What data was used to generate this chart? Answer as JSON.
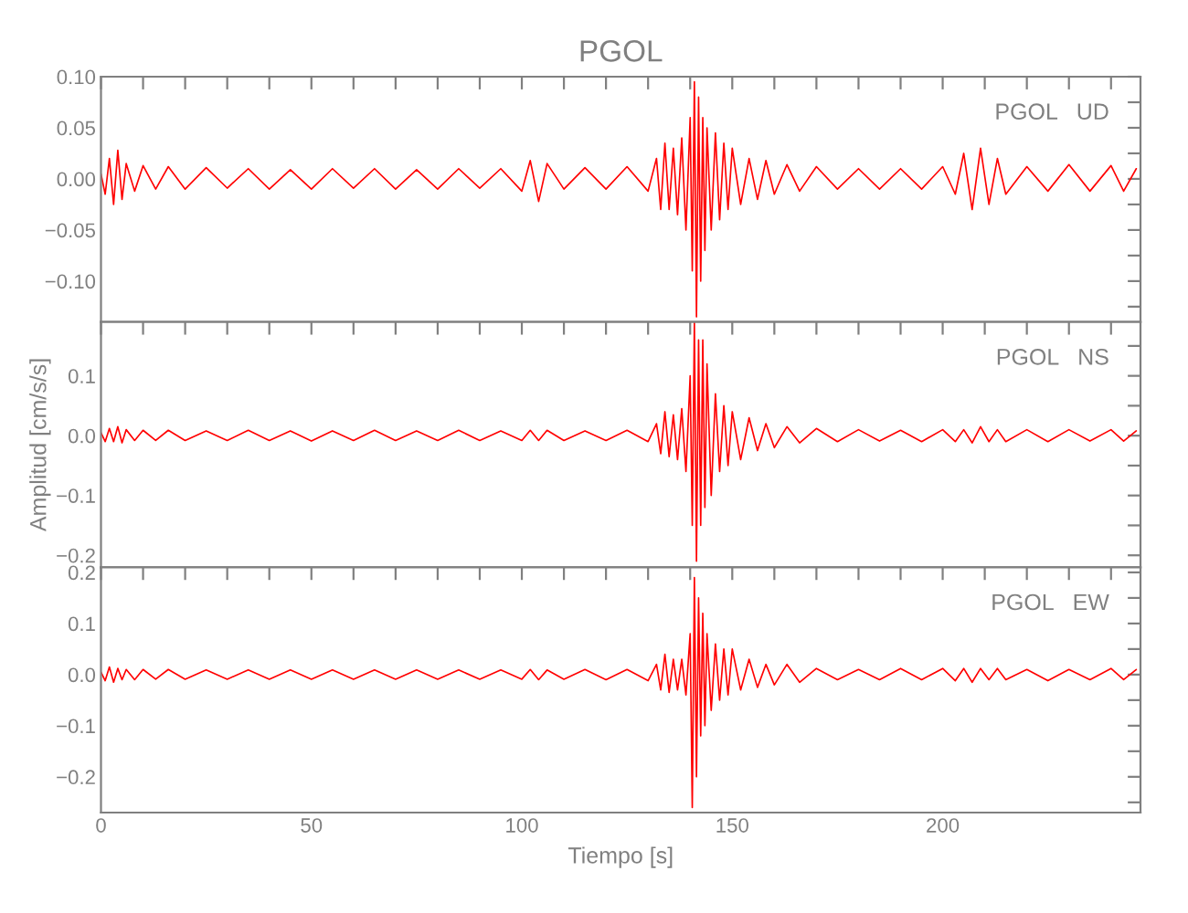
{
  "chart_data": [
    {
      "type": "line",
      "title": "PGOL",
      "annotations": [
        "PGOL   UD"
      ],
      "tick_labels": "y",
      "grid": false,
      "marker": "none",
      "line_style": "solid",
      "xlim": [
        0,
        247
      ],
      "xticks": [
        0,
        {
          "value": 10,
          "label": null
        },
        {
          "value": 20,
          "label": null
        },
        {
          "value": 30,
          "label": null
        },
        {
          "value": 40,
          "label": null
        },
        50,
        {
          "value": 60,
          "label": null
        },
        {
          "value": 70,
          "label": null
        },
        {
          "value": 80,
          "label": null
        },
        {
          "value": 90,
          "label": null
        },
        100,
        {
          "value": 110,
          "label": null
        },
        {
          "value": 120,
          "label": null
        },
        {
          "value": 130,
          "label": null
        },
        {
          "value": 140,
          "label": null
        },
        150,
        {
          "value": 160,
          "label": null
        },
        {
          "value": 170,
          "label": null
        },
        {
          "value": 180,
          "label": null
        },
        {
          "value": 190,
          "label": null
        },
        200,
        {
          "value": 210,
          "label": null
        },
        {
          "value": 220,
          "label": null
        },
        {
          "value": 230,
          "label": null
        },
        {
          "value": 240,
          "label": null
        }
      ],
      "ylim": [
        -0.14,
        0.1
      ],
      "yticks": [
        {
          "value": -0.125,
          "label": null
        },
        {
          "value": -0.1,
          "label": "−0.10"
        },
        {
          "value": -0.075,
          "label": null
        },
        {
          "value": -0.05,
          "label": "−0.05"
        },
        {
          "value": -0.025,
          "label": null
        },
        {
          "value": 0.0,
          "label": "0.00"
        },
        {
          "value": 0.025,
          "label": null
        },
        {
          "value": 0.05,
          "label": "0.05"
        },
        {
          "value": 0.075,
          "label": null
        },
        {
          "value": 0.1,
          "label": "0.10"
        }
      ],
      "x": [
        0,
        1,
        2,
        3,
        4,
        5,
        6,
        8,
        10,
        13,
        16,
        20,
        25,
        30,
        35,
        40,
        45,
        50,
        55,
        60,
        65,
        70,
        75,
        80,
        85,
        90,
        95,
        100,
        102,
        104,
        106,
        110,
        115,
        120,
        125,
        130,
        132,
        133,
        134,
        135,
        136,
        137,
        138,
        139,
        140,
        140.5,
        141,
        141.5,
        142,
        142.5,
        143,
        143.5,
        144,
        145,
        146,
        147,
        148,
        149,
        150,
        152,
        154,
        156,
        158,
        160,
        163,
        166,
        170,
        175,
        180,
        185,
        190,
        195,
        200,
        203,
        205,
        207,
        209,
        211,
        213,
        215,
        220,
        225,
        230,
        235,
        240,
        243,
        246
      ],
      "series": [
        {
          "color": "#ff0000",
          "values": [
            0.005,
            -0.015,
            0.02,
            -0.025,
            0.028,
            -0.02,
            0.015,
            -0.012,
            0.013,
            -0.01,
            0.012,
            -0.01,
            0.011,
            -0.009,
            0.01,
            -0.01,
            0.009,
            -0.01,
            0.01,
            -0.009,
            0.01,
            -0.01,
            0.009,
            -0.01,
            0.01,
            -0.009,
            0.01,
            -0.012,
            0.018,
            -0.022,
            0.015,
            -0.01,
            0.011,
            -0.01,
            0.012,
            -0.012,
            0.02,
            -0.03,
            0.035,
            -0.03,
            0.03,
            -0.035,
            0.04,
            -0.05,
            0.06,
            -0.09,
            0.095,
            -0.135,
            0.08,
            -0.1,
            0.06,
            -0.07,
            0.05,
            -0.05,
            0.045,
            -0.04,
            0.035,
            -0.03,
            0.03,
            -0.025,
            0.02,
            -0.02,
            0.018,
            -0.015,
            0.014,
            -0.012,
            0.012,
            -0.01,
            0.01,
            -0.01,
            0.01,
            -0.01,
            0.012,
            -0.015,
            0.025,
            -0.03,
            0.03,
            -0.025,
            0.02,
            -0.015,
            0.012,
            -0.012,
            0.014,
            -0.012,
            0.013,
            -0.012,
            0.01
          ]
        }
      ]
    },
    {
      "type": "line",
      "ylabel": "Amplitud [cm/s/s]",
      "annotations": [
        "PGOL   NS"
      ],
      "tick_labels": "y",
      "grid": false,
      "marker": "none",
      "line_style": "solid",
      "xlim": [
        0,
        247
      ],
      "xticks": [
        0,
        {
          "value": 10,
          "label": null
        },
        {
          "value": 20,
          "label": null
        },
        {
          "value": 30,
          "label": null
        },
        {
          "value": 40,
          "label": null
        },
        50,
        {
          "value": 60,
          "label": null
        },
        {
          "value": 70,
          "label": null
        },
        {
          "value": 80,
          "label": null
        },
        {
          "value": 90,
          "label": null
        },
        100,
        {
          "value": 110,
          "label": null
        },
        {
          "value": 120,
          "label": null
        },
        {
          "value": 130,
          "label": null
        },
        {
          "value": 140,
          "label": null
        },
        150,
        {
          "value": 160,
          "label": null
        },
        {
          "value": 170,
          "label": null
        },
        {
          "value": 180,
          "label": null
        },
        {
          "value": 190,
          "label": null
        },
        200,
        {
          "value": 210,
          "label": null
        },
        {
          "value": 220,
          "label": null
        },
        {
          "value": 230,
          "label": null
        },
        {
          "value": 240,
          "label": null
        }
      ],
      "ylim": [
        -0.22,
        0.19
      ],
      "yticks": [
        {
          "value": -0.2,
          "label": "−0.2"
        },
        {
          "value": -0.15,
          "label": null
        },
        {
          "value": -0.1,
          "label": "−0.1"
        },
        {
          "value": -0.05,
          "label": null
        },
        {
          "value": 0.0,
          "label": "0.0"
        },
        {
          "value": 0.05,
          "label": null
        },
        {
          "value": 0.1,
          "label": "0.1"
        },
        {
          "value": 0.15,
          "label": null
        }
      ],
      "x": [
        0,
        1,
        2,
        3,
        4,
        5,
        6,
        8,
        10,
        13,
        16,
        20,
        25,
        30,
        35,
        40,
        45,
        50,
        55,
        60,
        65,
        70,
        75,
        80,
        85,
        90,
        95,
        100,
        102,
        104,
        106,
        110,
        115,
        120,
        125,
        130,
        132,
        133,
        134,
        135,
        136,
        137,
        138,
        139,
        140,
        140.5,
        141,
        141.5,
        142,
        142.5,
        143,
        143.5,
        144,
        145,
        146,
        147,
        148,
        149,
        150,
        152,
        154,
        156,
        158,
        160,
        163,
        166,
        170,
        175,
        180,
        185,
        190,
        195,
        200,
        203,
        205,
        207,
        209,
        211,
        213,
        215,
        220,
        225,
        230,
        235,
        240,
        243,
        246
      ],
      "series": [
        {
          "color": "#ff0000",
          "values": [
            0.005,
            -0.01,
            0.012,
            -0.01,
            0.015,
            -0.012,
            0.01,
            -0.008,
            0.009,
            -0.008,
            0.009,
            -0.008,
            0.008,
            -0.008,
            0.009,
            -0.008,
            0.008,
            -0.009,
            0.008,
            -0.008,
            0.009,
            -0.008,
            0.008,
            -0.008,
            0.009,
            -0.008,
            0.008,
            -0.008,
            0.009,
            -0.008,
            0.009,
            -0.008,
            0.008,
            -0.008,
            0.009,
            -0.01,
            0.02,
            -0.03,
            0.04,
            -0.035,
            0.035,
            -0.04,
            0.045,
            -0.06,
            0.1,
            -0.15,
            0.19,
            -0.21,
            0.16,
            -0.15,
            0.16,
            -0.12,
            0.12,
            -0.1,
            0.07,
            -0.06,
            0.05,
            -0.05,
            0.04,
            -0.04,
            0.03,
            -0.025,
            0.02,
            -0.02,
            0.015,
            -0.012,
            0.012,
            -0.01,
            0.01,
            -0.009,
            0.009,
            -0.01,
            0.01,
            -0.01,
            0.01,
            -0.012,
            0.015,
            -0.01,
            0.01,
            -0.01,
            0.01,
            -0.01,
            0.01,
            -0.009,
            0.01,
            -0.009,
            0.008
          ]
        }
      ]
    },
    {
      "type": "line",
      "xlabel": "Tiempo [s]",
      "annotations": [
        "PGOL   EW"
      ],
      "grid": false,
      "marker": "none",
      "line_style": "solid",
      "xlim": [
        0,
        247
      ],
      "xticks": [
        0,
        {
          "value": 10,
          "label": null
        },
        {
          "value": 20,
          "label": null
        },
        {
          "value": 30,
          "label": null
        },
        {
          "value": 40,
          "label": null
        },
        50,
        {
          "value": 60,
          "label": null
        },
        {
          "value": 70,
          "label": null
        },
        {
          "value": 80,
          "label": null
        },
        {
          "value": 90,
          "label": null
        },
        100,
        {
          "value": 110,
          "label": null
        },
        {
          "value": 120,
          "label": null
        },
        {
          "value": 130,
          "label": null
        },
        {
          "value": 140,
          "label": null
        },
        150,
        {
          "value": 160,
          "label": null
        },
        {
          "value": 170,
          "label": null
        },
        {
          "value": 180,
          "label": null
        },
        {
          "value": 190,
          "label": null
        },
        200,
        {
          "value": 210,
          "label": null
        },
        {
          "value": 220,
          "label": null
        },
        {
          "value": 230,
          "label": null
        },
        {
          "value": 240,
          "label": null
        }
      ],
      "ylim": [
        -0.27,
        0.21
      ],
      "yticks": [
        {
          "value": -0.25,
          "label": null
        },
        {
          "value": -0.2,
          "label": "−0.2"
        },
        {
          "value": -0.15,
          "label": null
        },
        {
          "value": -0.1,
          "label": "−0.1"
        },
        {
          "value": -0.05,
          "label": null
        },
        {
          "value": 0.0,
          "label": "0.0"
        },
        {
          "value": 0.05,
          "label": null
        },
        {
          "value": 0.1,
          "label": "0.1"
        },
        {
          "value": 0.15,
          "label": null
        },
        {
          "value": 0.2,
          "label": "0.2"
        }
      ],
      "x": [
        0,
        1,
        2,
        3,
        4,
        5,
        6,
        8,
        10,
        13,
        16,
        20,
        25,
        30,
        35,
        40,
        45,
        50,
        55,
        60,
        65,
        70,
        75,
        80,
        85,
        90,
        95,
        100,
        102,
        104,
        106,
        110,
        115,
        120,
        125,
        130,
        132,
        133,
        134,
        135,
        136,
        137,
        138,
        139,
        140,
        140.5,
        141,
        141.5,
        142,
        142.5,
        143,
        143.5,
        144,
        145,
        146,
        147,
        148,
        149,
        150,
        152,
        154,
        156,
        158,
        160,
        163,
        166,
        170,
        175,
        180,
        185,
        190,
        195,
        200,
        203,
        205,
        207,
        209,
        211,
        213,
        215,
        220,
        225,
        230,
        235,
        240,
        243,
        246
      ],
      "series": [
        {
          "color": "#ff0000",
          "values": [
            0.005,
            -0.012,
            0.015,
            -0.015,
            0.012,
            -0.01,
            0.01,
            -0.01,
            0.01,
            -0.009,
            0.01,
            -0.009,
            0.009,
            -0.009,
            0.009,
            -0.009,
            0.009,
            -0.009,
            0.009,
            -0.009,
            0.009,
            -0.009,
            0.009,
            -0.009,
            0.009,
            -0.009,
            0.009,
            -0.009,
            0.01,
            -0.01,
            0.009,
            -0.009,
            0.01,
            -0.01,
            0.01,
            -0.012,
            0.02,
            -0.03,
            0.04,
            -0.035,
            0.03,
            -0.03,
            0.03,
            -0.04,
            0.08,
            -0.26,
            0.19,
            -0.2,
            0.15,
            -0.12,
            0.12,
            -0.1,
            0.08,
            -0.07,
            0.06,
            -0.05,
            0.05,
            -0.04,
            0.05,
            -0.03,
            0.03,
            -0.025,
            0.02,
            -0.02,
            0.02,
            -0.015,
            0.012,
            -0.01,
            0.01,
            -0.01,
            0.012,
            -0.01,
            0.012,
            -0.012,
            0.012,
            -0.015,
            0.012,
            -0.01,
            0.012,
            -0.01,
            0.01,
            -0.012,
            0.01,
            -0.01,
            0.012,
            -0.01,
            0.01
          ]
        }
      ]
    }
  ]
}
